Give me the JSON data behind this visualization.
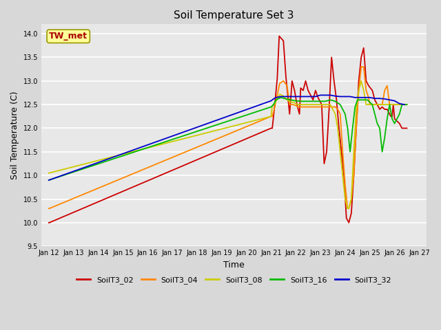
{
  "title": "Soil Temperature Set 3",
  "xlabel": "Time",
  "ylabel": "Soil Temperature (C)",
  "ylim": [
    9.5,
    14.2
  ],
  "bg_color": "#d8d8d8",
  "plot_bg_color": "#e8e8e8",
  "annotation_text": "TW_met",
  "annotation_color": "#aa0000",
  "annotation_bg": "#ffff99",
  "annotation_border": "#999900",
  "x_tick_labels": [
    "Jan 12",
    "Jan 13",
    "Jan 14",
    "Jan 15",
    "Jan 16",
    "Jan 17",
    "Jan 18",
    "Jan 19",
    "Jan 20",
    "Jan 21",
    "Jan 22",
    "Jan 23",
    "Jan 24",
    "Jan 25",
    "Jan 26",
    "Jan 27"
  ],
  "yticks": [
    9.5,
    10.0,
    10.5,
    11.0,
    11.5,
    12.0,
    12.5,
    13.0,
    13.5,
    14.0
  ],
  "series": {
    "SoilT3_02": {
      "color": "#cc0000",
      "x": [
        0,
        0.02,
        9.0,
        9.05,
        9.15,
        9.25,
        9.33,
        9.5,
        9.6,
        9.75,
        9.85,
        9.95,
        10.05,
        10.15,
        10.2,
        10.3,
        10.4,
        10.5,
        10.6,
        10.7,
        10.8,
        10.9,
        11.05,
        11.15,
        11.25,
        11.35,
        11.45,
        11.55,
        11.65,
        11.75,
        11.85,
        11.95,
        12.05,
        12.15,
        12.25,
        12.35,
        12.45,
        12.55,
        12.65,
        12.75,
        12.85,
        12.95,
        13.1,
        13.2,
        13.3,
        13.4,
        13.5,
        13.6,
        13.7,
        13.8,
        13.85,
        13.9,
        13.95,
        14.0,
        14.1,
        14.2,
        14.3,
        14.4,
        14.5
      ],
      "y": [
        10.0,
        10.0,
        12.0,
        12.0,
        12.5,
        13.05,
        13.95,
        13.85,
        13.1,
        12.3,
        13.0,
        12.8,
        12.5,
        12.3,
        12.85,
        12.8,
        13.0,
        12.8,
        12.7,
        12.6,
        12.8,
        12.65,
        12.5,
        11.25,
        11.5,
        12.4,
        13.5,
        13.0,
        12.6,
        12.0,
        11.5,
        11.0,
        10.1,
        10.0,
        10.2,
        11.0,
        12.0,
        13.0,
        13.5,
        13.7,
        13.0,
        12.9,
        12.8,
        12.6,
        12.5,
        12.4,
        12.45,
        12.4,
        12.4,
        12.3,
        12.25,
        12.25,
        12.5,
        12.2,
        12.15,
        12.1,
        12.0,
        12.0,
        12.0
      ]
    },
    "SoilT3_04": {
      "color": "#ff8800",
      "x": [
        0,
        0.02,
        9.0,
        9.05,
        9.15,
        9.25,
        9.35,
        9.5,
        9.65,
        9.75,
        9.9,
        10.0,
        10.1,
        10.2,
        10.3,
        10.4,
        10.5,
        10.6,
        10.7,
        10.8,
        10.9,
        11.0,
        11.1,
        11.2,
        11.3,
        11.4,
        11.5,
        11.6,
        11.7,
        11.8,
        11.9,
        12.0,
        12.1,
        12.15,
        12.25,
        12.35,
        12.45,
        12.55,
        12.65,
        12.75,
        12.85,
        12.95,
        13.0,
        13.1,
        13.2,
        13.3,
        13.4,
        13.5,
        13.6,
        13.7,
        13.8,
        13.9,
        14.0,
        14.1,
        14.2,
        14.3,
        14.4,
        14.5
      ],
      "y": [
        10.3,
        10.3,
        12.25,
        12.25,
        12.45,
        12.7,
        12.95,
        13.0,
        12.9,
        12.5,
        12.5,
        12.48,
        12.45,
        12.45,
        12.45,
        12.45,
        12.45,
        12.45,
        12.45,
        12.45,
        12.45,
        12.45,
        12.45,
        12.45,
        12.45,
        12.45,
        12.45,
        12.45,
        12.4,
        12.3,
        11.5,
        10.8,
        10.3,
        10.3,
        10.5,
        11.0,
        12.0,
        12.8,
        13.3,
        13.3,
        12.8,
        12.65,
        12.5,
        12.5,
        12.5,
        12.5,
        12.5,
        12.5,
        12.8,
        12.9,
        12.5,
        12.5,
        12.5,
        12.5,
        12.5,
        12.5,
        12.5,
        12.5
      ]
    },
    "SoilT3_08": {
      "color": "#cccc00",
      "x": [
        0,
        9.0,
        9.05,
        9.15,
        9.25,
        9.35,
        9.5,
        9.65,
        9.8,
        9.9,
        10.0,
        10.1,
        10.2,
        10.3,
        10.4,
        10.5,
        10.6,
        10.7,
        10.8,
        10.9,
        11.0,
        11.1,
        11.2,
        11.3,
        11.4,
        11.5,
        11.6,
        11.7,
        11.8,
        11.9,
        12.0,
        12.1,
        12.15,
        12.25,
        12.35,
        12.45,
        12.55,
        12.65,
        12.75,
        12.85,
        12.95,
        13.0,
        13.1,
        13.2,
        13.3,
        13.4,
        13.5,
        13.6,
        13.7,
        13.8,
        13.9,
        14.0,
        14.1,
        14.2,
        14.3,
        14.4,
        14.5
      ],
      "y": [
        11.05,
        12.25,
        12.48,
        12.52,
        12.62,
        12.72,
        12.68,
        12.6,
        12.55,
        12.55,
        12.52,
        12.5,
        12.5,
        12.5,
        12.5,
        12.5,
        12.5,
        12.5,
        12.5,
        12.5,
        12.5,
        12.5,
        12.5,
        12.5,
        12.5,
        12.4,
        12.3,
        12.0,
        11.5,
        11.0,
        10.5,
        10.3,
        10.3,
        10.5,
        11.5,
        12.4,
        12.8,
        13.0,
        12.8,
        12.5,
        12.5,
        12.5,
        12.5,
        12.5,
        12.5,
        12.5,
        12.5,
        12.5,
        12.5,
        12.5,
        12.5,
        12.5,
        12.5,
        12.5,
        12.5,
        12.5,
        12.5
      ]
    },
    "SoilT3_16": {
      "color": "#00bb00",
      "x": [
        0,
        9.0,
        9.1,
        9.2,
        9.4,
        9.6,
        9.8,
        10.0,
        10.2,
        10.4,
        10.6,
        10.8,
        11.0,
        11.2,
        11.4,
        11.6,
        11.8,
        12.0,
        12.1,
        12.2,
        12.3,
        12.4,
        12.5,
        12.7,
        12.9,
        13.1,
        13.2,
        13.3,
        13.4,
        13.5,
        13.6,
        13.7,
        13.8,
        13.9,
        14.0,
        14.1,
        14.2,
        14.3,
        14.4,
        14.5
      ],
      "y": [
        10.9,
        12.45,
        12.5,
        12.6,
        12.65,
        12.62,
        12.6,
        12.58,
        12.57,
        12.57,
        12.57,
        12.57,
        12.57,
        12.57,
        12.6,
        12.57,
        12.5,
        12.3,
        12.0,
        11.5,
        12.0,
        12.45,
        12.6,
        12.6,
        12.6,
        12.5,
        12.3,
        12.1,
        12.0,
        11.5,
        11.8,
        12.2,
        12.5,
        12.2,
        12.1,
        12.2,
        12.3,
        12.5,
        12.5,
        12.5
      ]
    },
    "SoilT3_32": {
      "color": "#0000cc",
      "x": [
        0,
        9.0,
        9.1,
        9.2,
        9.4,
        9.6,
        9.8,
        10.0,
        10.2,
        10.4,
        10.6,
        10.8,
        11.0,
        11.2,
        11.4,
        11.6,
        11.8,
        12.0,
        12.2,
        12.4,
        12.6,
        12.8,
        13.0,
        13.2,
        13.4,
        13.6,
        13.8,
        14.0,
        14.2,
        14.4
      ],
      "y": [
        10.9,
        12.58,
        12.62,
        12.65,
        12.67,
        12.67,
        12.67,
        12.67,
        12.67,
        12.67,
        12.67,
        12.67,
        12.7,
        12.7,
        12.7,
        12.68,
        12.67,
        12.67,
        12.67,
        12.65,
        12.65,
        12.65,
        12.65,
        12.63,
        12.63,
        12.62,
        12.6,
        12.58,
        12.52,
        12.5
      ]
    }
  }
}
